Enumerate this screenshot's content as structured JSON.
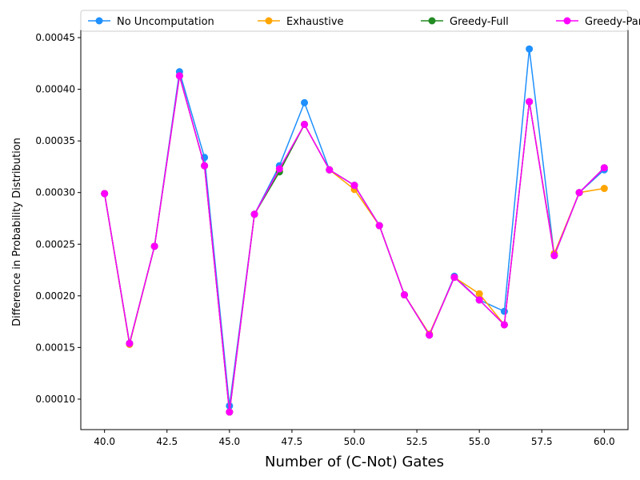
{
  "chart_data": {
    "type": "line",
    "xlabel": "Number of (C-Not) Gates",
    "ylabel": "Difference in Probability Distribution",
    "xlim": [
      39.05,
      60.95
    ],
    "ylim": [
      7.05e-05,
      0.000457
    ],
    "xticks": [
      40.0,
      42.5,
      45.0,
      47.5,
      50.0,
      52.5,
      55.0,
      57.5,
      60.0
    ],
    "xtick_labels": [
      "40.0",
      "42.5",
      "45.0",
      "47.5",
      "50.0",
      "52.5",
      "55.0",
      "57.5",
      "60.0"
    ],
    "yticks": [
      0.0001,
      0.00015,
      0.0002,
      0.00025,
      0.0003,
      0.00035,
      0.0004,
      0.00045
    ],
    "ytick_labels": [
      "0.00010",
      "0.00015",
      "0.00020",
      "0.00025",
      "0.00030",
      "0.00035",
      "0.00040",
      "0.00045"
    ],
    "grid": false,
    "legend_position": "top, above plot, 4 columns",
    "x": [
      40,
      41,
      42,
      43,
      44,
      45,
      46,
      47,
      48,
      49,
      50,
      51,
      52,
      53,
      54,
      55,
      56,
      57,
      58,
      59,
      60
    ],
    "series": [
      {
        "name": "No Uncomputation",
        "color": "#1E90FF",
        "values": [
          0.000299,
          0.000154,
          0.000248,
          0.000417,
          0.000334,
          9.35e-05,
          0.000279,
          0.000326,
          0.000387,
          0.000322,
          0.000307,
          0.000268,
          0.000201,
          0.000162,
          0.000219,
          0.000196,
          0.000185,
          0.000439,
          0.000239,
          0.0003,
          0.000322
        ]
      },
      {
        "name": "Exhaustive",
        "color": "#FFA500",
        "values": [
          0.000299,
          0.000153,
          0.000248,
          0.000413,
          0.000326,
          8.75e-05,
          0.000279,
          0.000321,
          0.000366,
          0.000322,
          0.000303,
          0.000268,
          0.000201,
          0.000163,
          0.000218,
          0.000202,
          0.000172,
          0.000388,
          0.000241,
          0.0003,
          0.000304
        ]
      },
      {
        "name": "Greedy-Full",
        "color": "#228B22",
        "values": [
          0.000299,
          0.000154,
          0.000248,
          0.000413,
          0.000326,
          8.75e-05,
          0.000279,
          0.00032,
          0.000366,
          0.000322,
          0.000307,
          0.000268,
          0.000201,
          0.000162,
          0.000218,
          0.000196,
          0.000172,
          0.000388,
          0.000239,
          0.0003,
          0.000324
        ]
      },
      {
        "name": "Greedy-Partial",
        "color": "#FF00FF",
        "values": [
          0.000299,
          0.000154,
          0.000248,
          0.000413,
          0.000326,
          8.75e-05,
          0.000279,
          0.000323,
          0.000366,
          0.000322,
          0.000307,
          0.000268,
          0.000201,
          0.000162,
          0.000218,
          0.000196,
          0.000172,
          0.000388,
          0.000239,
          0.0003,
          0.000324
        ]
      }
    ]
  }
}
